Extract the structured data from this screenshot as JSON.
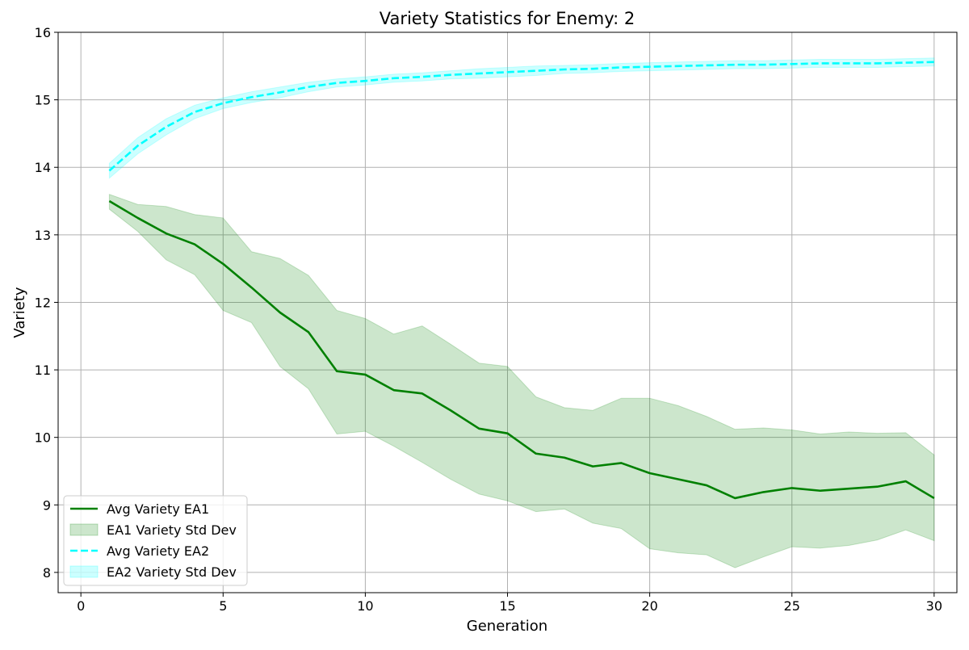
{
  "chart_data": {
    "type": "line",
    "title": "Variety Statistics for Enemy: 2",
    "xlabel": "Generation",
    "ylabel": "Variety",
    "xlim": [
      -0.8,
      30.8
    ],
    "ylim": [
      7.7,
      16.0
    ],
    "xticks": [
      0,
      5,
      10,
      15,
      20,
      25,
      30
    ],
    "yticks": [
      8,
      9,
      10,
      11,
      12,
      13,
      14,
      15,
      16
    ],
    "grid": true,
    "legend_position": "lower-left",
    "x": [
      1,
      2,
      3,
      4,
      5,
      6,
      7,
      8,
      9,
      10,
      11,
      12,
      13,
      14,
      15,
      16,
      17,
      18,
      19,
      20,
      21,
      22,
      23,
      24,
      25,
      26,
      27,
      28,
      29,
      30
    ],
    "series": [
      {
        "name": "Avg Variety EA1",
        "color": "#008000",
        "line_style": "solid",
        "values": [
          13.5,
          13.25,
          13.02,
          12.86,
          12.57,
          12.22,
          11.85,
          11.56,
          10.98,
          10.93,
          10.7,
          10.65,
          10.4,
          10.13,
          10.06,
          9.76,
          9.7,
          9.57,
          9.62,
          9.47,
          9.38,
          9.29,
          9.1,
          9.19,
          9.25,
          9.21,
          9.24,
          9.27,
          9.35,
          9.1
        ]
      },
      {
        "name": "Avg Variety EA2",
        "color": "#00ffff",
        "line_style": "dashed",
        "values": [
          13.95,
          14.32,
          14.6,
          14.82,
          14.95,
          15.04,
          15.11,
          15.19,
          15.25,
          15.28,
          15.32,
          15.34,
          15.37,
          15.39,
          15.41,
          15.43,
          15.45,
          15.46,
          15.48,
          15.49,
          15.5,
          15.51,
          15.52,
          15.52,
          15.53,
          15.54,
          15.54,
          15.54,
          15.55,
          15.56
        ]
      }
    ],
    "bands": [
      {
        "name": "EA1 Variety Std Dev",
        "color": "#008000",
        "opacity": 0.2,
        "upper": [
          13.6,
          13.45,
          13.42,
          13.3,
          13.25,
          12.75,
          12.65,
          12.4,
          11.88,
          11.76,
          11.53,
          11.65,
          11.38,
          11.1,
          11.05,
          10.6,
          10.44,
          10.4,
          10.58,
          10.58,
          10.47,
          10.31,
          10.12,
          10.14,
          10.11,
          10.05,
          10.08,
          10.06,
          10.07,
          9.74
        ],
        "lower": [
          13.38,
          13.05,
          12.63,
          12.41,
          11.88,
          11.7,
          11.05,
          10.72,
          10.05,
          10.09,
          9.87,
          9.63,
          9.38,
          9.16,
          9.06,
          8.9,
          8.94,
          8.73,
          8.65,
          8.35,
          8.29,
          8.26,
          8.07,
          8.23,
          8.38,
          8.36,
          8.4,
          8.48,
          8.63,
          8.47
        ]
      },
      {
        "name": "EA2 Variety Std Dev",
        "color": "#00ffff",
        "opacity": 0.2,
        "upper": [
          14.06,
          14.44,
          14.72,
          14.92,
          15.03,
          15.12,
          15.19,
          15.26,
          15.31,
          15.34,
          15.38,
          15.4,
          15.43,
          15.46,
          15.48,
          15.5,
          15.51,
          15.52,
          15.54,
          15.55,
          15.56,
          15.57,
          15.58,
          15.58,
          15.59,
          15.6,
          15.6,
          15.6,
          15.61,
          15.62
        ],
        "lower": [
          13.84,
          14.2,
          14.48,
          14.72,
          14.87,
          14.96,
          15.03,
          15.12,
          15.19,
          15.22,
          15.26,
          15.28,
          15.31,
          15.32,
          15.34,
          15.36,
          15.39,
          15.4,
          15.42,
          15.43,
          15.44,
          15.45,
          15.46,
          15.46,
          15.47,
          15.48,
          15.48,
          15.48,
          15.49,
          15.5
        ]
      }
    ],
    "legend": [
      {
        "label": "Avg Variety EA1",
        "kind": "line",
        "color": "#008000",
        "dashed": false
      },
      {
        "label": "EA1 Variety Std Dev",
        "kind": "patch",
        "color": "#008000"
      },
      {
        "label": "Avg Variety EA2",
        "kind": "line",
        "color": "#00ffff",
        "dashed": true
      },
      {
        "label": "EA2 Variety Std Dev",
        "kind": "patch",
        "color": "#00ffff"
      }
    ]
  }
}
